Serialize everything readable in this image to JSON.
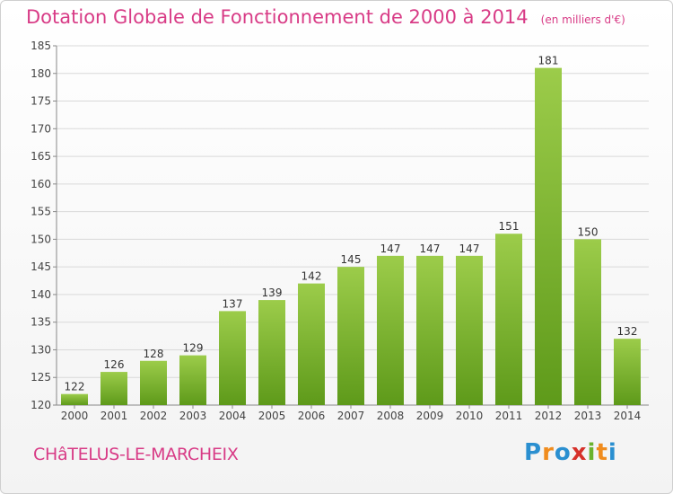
{
  "title": "Dotation Globale de Fonctionnement de 2000 à 2014",
  "unit": "(en milliers d'€)",
  "commune": "CHâTELUS-LE-MARCHEIX",
  "logo": {
    "letters": [
      "P",
      "r",
      "o",
      "x",
      "i",
      "t",
      "i"
    ],
    "colors": [
      "#2a8fd0",
      "#f08c1e",
      "#2a8fd0",
      "#d6312a",
      "#6bb32e",
      "#f08c1e",
      "#2a8fd0"
    ]
  },
  "colors": {
    "title": "#d83b86",
    "bar_top": "#9ccc4a",
    "bar_bottom": "#5e9a1a",
    "grid": "#d9d9d9"
  },
  "chart_data": {
    "type": "bar",
    "categories": [
      "2000",
      "2001",
      "2002",
      "2003",
      "2004",
      "2005",
      "2006",
      "2007",
      "2008",
      "2009",
      "2010",
      "2011",
      "2012",
      "2013",
      "2014"
    ],
    "values": [
      122,
      126,
      128,
      129,
      137,
      139,
      142,
      145,
      147,
      147,
      147,
      151,
      181,
      150,
      132
    ],
    "ylim": [
      120,
      185
    ],
    "yticks": [
      120,
      125,
      130,
      135,
      140,
      145,
      150,
      155,
      160,
      165,
      170,
      175,
      180,
      185
    ],
    "grid": true
  }
}
